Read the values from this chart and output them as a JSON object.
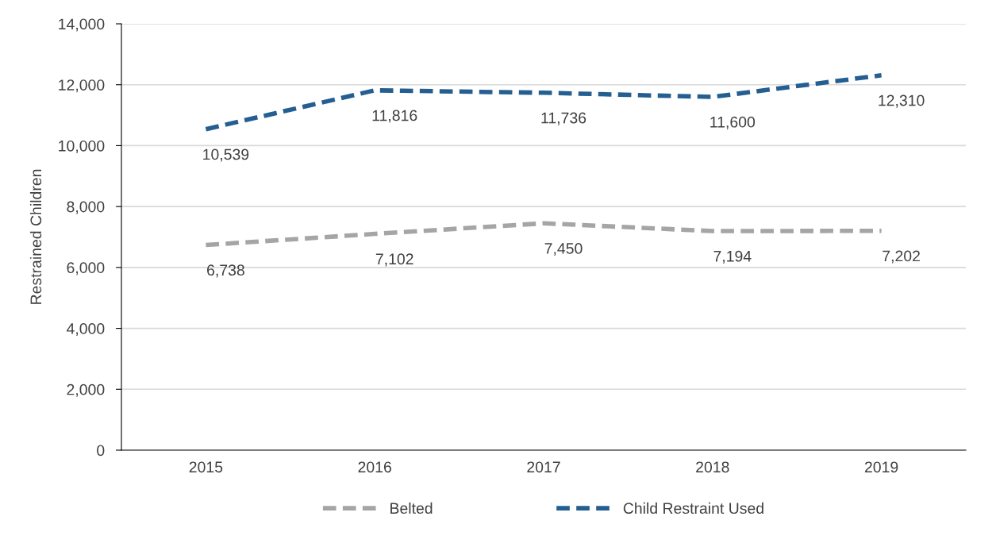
{
  "chart_data": {
    "type": "line",
    "ylabel": "Restrained Children",
    "categories": [
      "2015",
      "2016",
      "2017",
      "2018",
      "2019"
    ],
    "series": [
      {
        "name": "Belted",
        "color": "#a5a5a5",
        "values": [
          6738,
          7102,
          7450,
          7194,
          7202
        ],
        "value_labels": [
          "6,738",
          "7,102",
          "7,450",
          "7,194",
          "7,202"
        ]
      },
      {
        "name": "Child Restraint Used",
        "color": "#255e91",
        "values": [
          10539,
          11816,
          11736,
          11600,
          12310
        ],
        "value_labels": [
          "10,539",
          "11,816",
          "11,736",
          "11,600",
          "12,310"
        ]
      }
    ],
    "ylim": [
      0,
      14000
    ],
    "yticks": [
      {
        "value": 0,
        "label": "0"
      },
      {
        "value": 2000,
        "label": "2,000"
      },
      {
        "value": 4000,
        "label": "4,000"
      },
      {
        "value": 6000,
        "label": "6,000"
      },
      {
        "value": 8000,
        "label": "8,000"
      },
      {
        "value": 10000,
        "label": "10,000"
      },
      {
        "value": 12000,
        "label": "12,000"
      },
      {
        "value": 14000,
        "label": "14,000"
      }
    ],
    "grid": "y",
    "legend": "bottom",
    "line_style": "dashed",
    "marker": "none"
  }
}
